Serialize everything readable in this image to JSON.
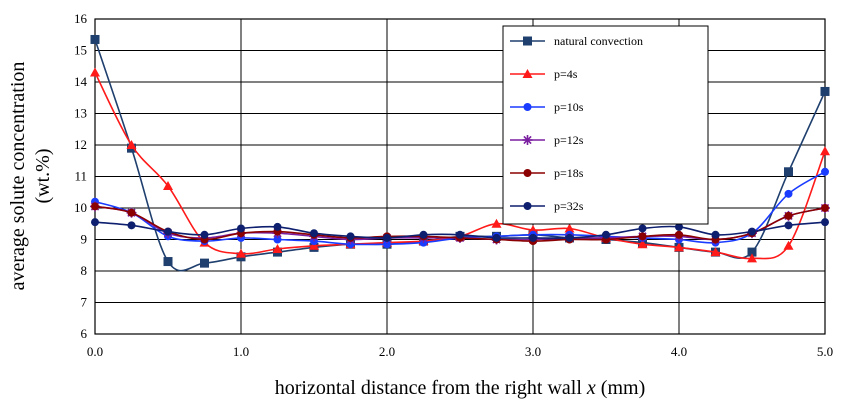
{
  "chart_data": {
    "type": "line",
    "xlabel": "horizontal distance from the right wall x (mm)",
    "ylabel": "average solute concentration (wt.%)",
    "ylabel_line1": "average solute concentration",
    "ylabel_line2": "(wt.%)",
    "xlabel_prefix": "horizontal distance from the right wall ",
    "xlabel_var": "x",
    "xlabel_suffix": " (mm)",
    "xlim": [
      0,
      5
    ],
    "ylim": [
      6,
      16
    ],
    "xticks": [
      0,
      1,
      2,
      3,
      4,
      5
    ],
    "xtick_labels": [
      "0.0",
      "1.0",
      "2.0",
      "3.0",
      "4.0",
      "5.0"
    ],
    "yticks": [
      6,
      7,
      8,
      9,
      10,
      11,
      12,
      13,
      14,
      15,
      16
    ],
    "ytick_labels": [
      "6",
      "7",
      "8",
      "9",
      "10",
      "11",
      "12",
      "13",
      "14",
      "15",
      "16"
    ],
    "grid": true,
    "legend_position": "top-right",
    "series": [
      {
        "name": "natural convection",
        "color": "#1f3f6e",
        "marker": "square",
        "x": [
          0,
          0.25,
          0.5,
          0.75,
          1.0,
          1.25,
          1.5,
          1.75,
          2.0,
          2.25,
          2.5,
          2.75,
          3.0,
          3.25,
          3.5,
          3.75,
          4.0,
          4.25,
          4.5,
          4.75,
          5.0
        ],
        "y": [
          15.35,
          11.9,
          8.3,
          8.25,
          8.45,
          8.6,
          8.75,
          8.85,
          8.85,
          8.95,
          9.1,
          9.1,
          9.15,
          9.05,
          9.0,
          8.9,
          8.75,
          8.6,
          8.6,
          11.15,
          13.7
        ]
      },
      {
        "name": "p=4s",
        "color": "#ff1a1a",
        "marker": "triangle",
        "x": [
          0,
          0.25,
          0.5,
          0.75,
          1.0,
          1.25,
          1.5,
          1.75,
          2.0,
          2.25,
          2.5,
          2.75,
          3.0,
          3.25,
          3.5,
          3.75,
          4.0,
          4.25,
          4.5,
          4.75,
          5.0
        ],
        "y": [
          14.3,
          12.0,
          10.7,
          8.9,
          8.55,
          8.7,
          8.8,
          8.85,
          8.9,
          8.95,
          9.1,
          9.5,
          9.3,
          9.35,
          9.05,
          8.85,
          8.75,
          8.6,
          8.4,
          8.8,
          11.8
        ]
      },
      {
        "name": "p=10s",
        "color": "#1a3cff",
        "marker": "circle",
        "x": [
          0,
          0.25,
          0.5,
          0.75,
          1.0,
          1.25,
          1.5,
          1.75,
          2.0,
          2.25,
          2.5,
          2.75,
          3.0,
          3.25,
          3.5,
          3.75,
          4.0,
          4.25,
          4.5,
          4.75,
          5.0
        ],
        "y": [
          10.2,
          9.85,
          9.1,
          8.95,
          9.05,
          9.0,
          8.95,
          8.85,
          8.85,
          8.9,
          9.05,
          9.1,
          9.15,
          9.15,
          9.1,
          9.05,
          9.0,
          8.9,
          9.2,
          10.45,
          11.15
        ]
      },
      {
        "name": "p=12s",
        "color": "#7a1fa0",
        "marker": "star",
        "x": [
          0,
          0.25,
          0.5,
          0.75,
          1.0,
          1.25,
          1.5,
          1.75,
          2.0,
          2.25,
          2.5,
          2.75,
          3.0,
          3.25,
          3.5,
          3.75,
          4.0,
          4.25,
          4.5,
          4.75,
          5.0
        ],
        "y": [
          10.05,
          9.85,
          9.2,
          9.05,
          9.2,
          9.2,
          9.1,
          9.0,
          9.05,
          9.05,
          9.05,
          9.0,
          9.0,
          9.05,
          9.05,
          9.1,
          9.1,
          9.0,
          9.2,
          9.75,
          10.0
        ]
      },
      {
        "name": "p=18s",
        "color": "#8b0000",
        "marker": "circle",
        "x": [
          0,
          0.25,
          0.5,
          0.75,
          1.0,
          1.25,
          1.5,
          1.75,
          2.0,
          2.25,
          2.5,
          2.75,
          3.0,
          3.25,
          3.5,
          3.75,
          4.0,
          4.25,
          4.5,
          4.75,
          5.0
        ],
        "y": [
          10.05,
          9.85,
          9.25,
          9.0,
          9.2,
          9.25,
          9.15,
          9.05,
          9.1,
          9.1,
          9.05,
          9.0,
          8.95,
          9.0,
          9.0,
          9.1,
          9.15,
          9.0,
          9.2,
          9.75,
          10.0
        ]
      },
      {
        "name": "p=32s",
        "color": "#0d1f6e",
        "marker": "circle",
        "x": [
          0,
          0.25,
          0.5,
          0.75,
          1.0,
          1.25,
          1.5,
          1.75,
          2.0,
          2.25,
          2.5,
          2.75,
          3.0,
          3.25,
          3.5,
          3.75,
          4.0,
          4.25,
          4.5,
          4.75,
          5.0
        ],
        "y": [
          9.55,
          9.45,
          9.25,
          9.15,
          9.35,
          9.4,
          9.2,
          9.1,
          9.05,
          9.15,
          9.15,
          9.05,
          9.05,
          9.05,
          9.15,
          9.35,
          9.4,
          9.15,
          9.25,
          9.45,
          9.55
        ]
      }
    ]
  }
}
